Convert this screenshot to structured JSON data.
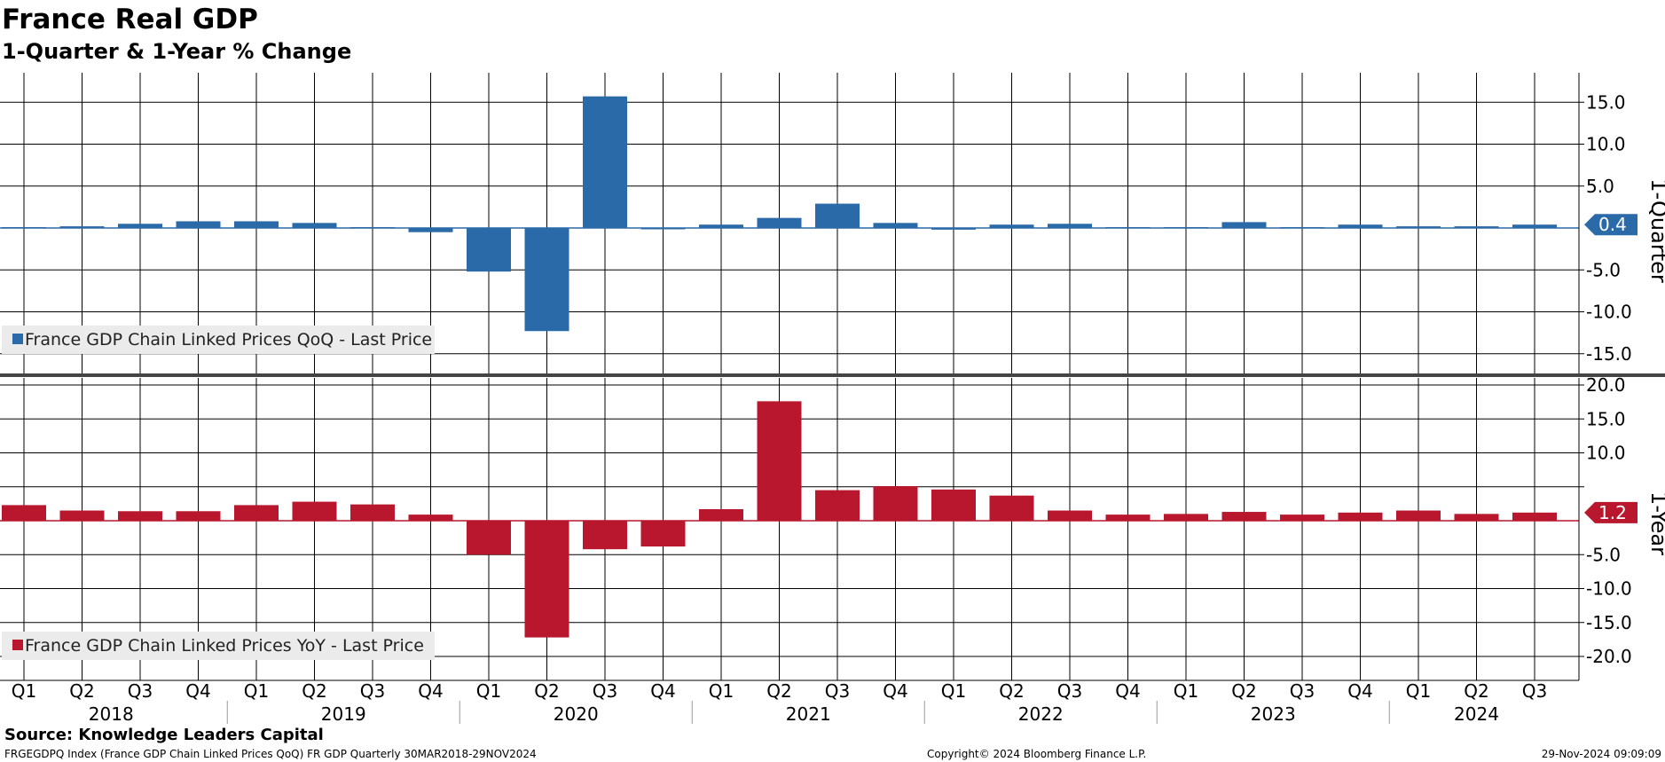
{
  "header": {
    "title": "France Real GDP",
    "subtitle": "1-Quarter & 1-Year % Change"
  },
  "footer": {
    "source": "Source: Knowledge Leaders Capital",
    "ticker_line": "FRGEGDPQ Index (France GDP Chain Linked Prices QoQ) FR GDP  Quarterly 30MAR2018-29NOV2024",
    "copyright": "Copyright© 2024 Bloomberg Finance L.P.",
    "timestamp": "29-Nov-2024 09:09:09"
  },
  "colors": {
    "qoq": "#2b6aa8",
    "yoy": "#b8172d",
    "grid": "#000000",
    "legend_bg": "#ebebeb",
    "separator": "#444444"
  },
  "chart_data": [
    {
      "type": "bar",
      "panel_label": "1-Quarter",
      "legend": "France GDP Chain Linked Prices QoQ - Last Price",
      "legend_position": "bottom-left",
      "last_value_label": "0.4",
      "ylim": [
        -18,
        20
      ],
      "yticks": [
        15.0,
        10.0,
        5.0,
        0,
        -5.0,
        -10.0,
        -15.0
      ],
      "ytick_labels": [
        "15.0",
        "10.0",
        "5.0",
        "",
        "-5.0",
        "-10.0",
        "-15.0"
      ],
      "grid": true,
      "categories": [
        "2018 Q1",
        "2018 Q2",
        "2018 Q3",
        "2018 Q4",
        "2019 Q1",
        "2019 Q2",
        "2019 Q3",
        "2019 Q4",
        "2020 Q1",
        "2020 Q2",
        "2020 Q3",
        "2020 Q4",
        "2021 Q1",
        "2021 Q2",
        "2021 Q3",
        "2021 Q4",
        "2022 Q1",
        "2022 Q2",
        "2022 Q3",
        "2022 Q4",
        "2023 Q1",
        "2023 Q2",
        "2023 Q3",
        "2023 Q4",
        "2024 Q1",
        "2024 Q2",
        "2024 Q3"
      ],
      "values": [
        0.1,
        0.2,
        0.5,
        0.8,
        0.8,
        0.6,
        0.1,
        -0.5,
        -5.2,
        -12.3,
        15.7,
        0.0,
        0.4,
        1.2,
        2.9,
        0.6,
        -0.2,
        0.4,
        0.5,
        0.1,
        0.1,
        0.7,
        0.1,
        0.4,
        0.2,
        0.2,
        0.4
      ]
    },
    {
      "type": "bar",
      "panel_label": "1-Year",
      "legend": "France GDP Chain Linked Prices YoY - Last Price",
      "legend_position": "bottom-left",
      "last_value_label": "1.2",
      "ylim": [
        -24,
        22
      ],
      "yticks": [
        20.0,
        15.0,
        10.0,
        5.0,
        0,
        -5.0,
        -10.0,
        -15.0,
        -20.0
      ],
      "ytick_labels": [
        "20.0",
        "15.0",
        "10.0",
        "",
        "",
        "-5.0",
        "-10.0",
        "-15.0",
        "-20.0"
      ],
      "grid": true,
      "categories": [
        "2018 Q1",
        "2018 Q2",
        "2018 Q3",
        "2018 Q4",
        "2019 Q1",
        "2019 Q2",
        "2019 Q3",
        "2019 Q4",
        "2020 Q1",
        "2020 Q2",
        "2020 Q3",
        "2020 Q4",
        "2021 Q1",
        "2021 Q2",
        "2021 Q3",
        "2021 Q4",
        "2022 Q1",
        "2022 Q2",
        "2022 Q3",
        "2022 Q4",
        "2023 Q1",
        "2023 Q2",
        "2023 Q3",
        "2023 Q4",
        "2024 Q1",
        "2024 Q2",
        "2024 Q3"
      ],
      "values": [
        2.3,
        1.5,
        1.4,
        1.4,
        2.3,
        2.8,
        2.4,
        0.9,
        -5.0,
        -17.2,
        -4.2,
        -3.8,
        1.7,
        17.6,
        4.5,
        5.1,
        4.6,
        3.7,
        1.5,
        0.9,
        1.0,
        1.3,
        0.9,
        1.2,
        1.5,
        1.0,
        1.2
      ]
    }
  ],
  "x_axis": {
    "quarter_labels": [
      "Q1",
      "Q2",
      "Q3",
      "Q4",
      "Q1",
      "Q2",
      "Q3",
      "Q4",
      "Q1",
      "Q2",
      "Q3",
      "Q4",
      "Q1",
      "Q2",
      "Q3",
      "Q4",
      "Q1",
      "Q2",
      "Q3",
      "Q4",
      "Q1",
      "Q2",
      "Q3",
      "Q4",
      "Q1",
      "Q2",
      "Q3"
    ],
    "years": [
      {
        "label": "2018",
        "start": 0,
        "end": 3
      },
      {
        "label": "2019",
        "start": 4,
        "end": 7
      },
      {
        "label": "2020",
        "start": 8,
        "end": 11
      },
      {
        "label": "2021",
        "start": 12,
        "end": 15
      },
      {
        "label": "2022",
        "start": 16,
        "end": 19
      },
      {
        "label": "2023",
        "start": 20,
        "end": 23
      },
      {
        "label": "2024",
        "start": 24,
        "end": 26
      }
    ]
  }
}
